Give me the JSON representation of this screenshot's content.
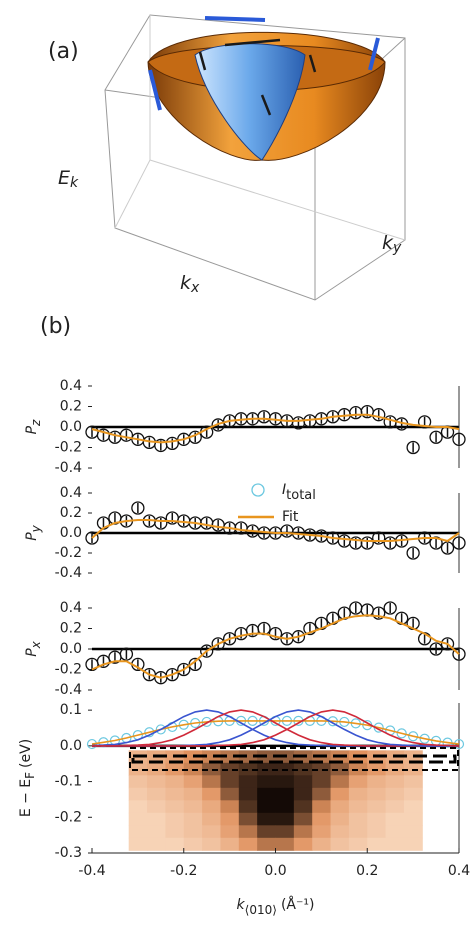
{
  "panel_a": {
    "label": "(a)",
    "zlabel": "E",
    "zlabel_sub": "k",
    "xlabel": "k",
    "xlabel_sub": "x",
    "ylabel": "k",
    "ylabel_sub": "y"
  },
  "panel_b_label": "(b)",
  "chart_data": [
    {
      "type": "scatter",
      "ylabel": "P",
      "ylabel_sub": "z",
      "x": [
        -0.4,
        -0.375,
        -0.35,
        -0.325,
        -0.3,
        -0.275,
        -0.25,
        -0.225,
        -0.2,
        -0.175,
        -0.15,
        -0.125,
        -0.1,
        -0.075,
        -0.05,
        -0.025,
        0,
        0.025,
        0.05,
        0.075,
        0.1,
        0.125,
        0.15,
        0.175,
        0.2,
        0.225,
        0.25,
        0.275,
        0.3,
        0.325,
        0.35,
        0.375,
        0.4
      ],
      "xlim": [
        -0.4,
        0.4
      ],
      "ylim": [
        -0.4,
        0.4
      ],
      "yticks": [
        0.4,
        0.2,
        {
          "value": 0,
          "label": "0.0"
        },
        -0.2,
        -0.4
      ],
      "series": [
        {
          "style": "points",
          "color": "#111111",
          "values": [
            -0.05,
            -0.08,
            -0.1,
            -0.08,
            -0.12,
            -0.15,
            -0.18,
            -0.16,
            -0.12,
            -0.1,
            -0.05,
            0.02,
            0.06,
            0.08,
            0.08,
            0.1,
            0.08,
            0.06,
            0.04,
            0.06,
            0.08,
            0.1,
            0.12,
            0.14,
            0.15,
            0.12,
            0.05,
            0.03,
            -0.2,
            0.05,
            -0.1,
            -0.05,
            -0.12
          ]
        },
        {
          "style": "line",
          "color": "#e8951e",
          "values": [
            -0.02,
            -0.05,
            -0.08,
            -0.1,
            -0.12,
            -0.14,
            -0.15,
            -0.14,
            -0.12,
            -0.08,
            -0.02,
            0.03,
            0.06,
            0.07,
            0.08,
            0.08,
            0.07,
            0.06,
            0.06,
            0.07,
            0.08,
            0.1,
            0.11,
            0.12,
            0.12,
            0.1,
            0.07,
            0.04,
            0.02,
            0.01,
            0,
            0,
            -0.02
          ]
        }
      ]
    },
    {
      "type": "scatter",
      "ylabel": "P",
      "ylabel_sub": "y",
      "x": [
        -0.4,
        -0.375,
        -0.35,
        -0.325,
        -0.3,
        -0.275,
        -0.25,
        -0.225,
        -0.2,
        -0.175,
        -0.15,
        -0.125,
        -0.1,
        -0.075,
        -0.05,
        -0.025,
        0,
        0.025,
        0.05,
        0.075,
        0.1,
        0.125,
        0.15,
        0.175,
        0.2,
        0.225,
        0.25,
        0.275,
        0.3,
        0.325,
        0.35,
        0.375,
        0.4
      ],
      "xlim": [
        -0.4,
        0.4
      ],
      "ylim": [
        -0.4,
        0.4
      ],
      "yticks": [
        0.4,
        0.2,
        {
          "value": 0,
          "label": "0.0"
        },
        -0.2,
        -0.4
      ],
      "series": [
        {
          "style": "points",
          "color": "#111111",
          "values": [
            -0.05,
            0.1,
            0.15,
            0.12,
            0.25,
            0.12,
            0.1,
            0.15,
            0.12,
            0.1,
            0.1,
            0.08,
            0.05,
            0.05,
            0.02,
            0,
            0,
            0.02,
            0,
            -0.02,
            -0.03,
            -0.05,
            -0.08,
            -0.1,
            -0.1,
            -0.05,
            -0.1,
            -0.08,
            -0.2,
            -0.05,
            -0.1,
            -0.15,
            -0.1
          ]
        },
        {
          "style": "line",
          "color": "#e8951e",
          "values": [
            -0.05,
            0.05,
            0.1,
            0.12,
            0.13,
            0.13,
            0.12,
            0.12,
            0.11,
            0.1,
            0.08,
            0.06,
            0.05,
            0.03,
            0.02,
            0.01,
            0,
            0,
            -0.01,
            -0.02,
            -0.03,
            -0.05,
            -0.06,
            -0.07,
            -0.08,
            -0.08,
            -0.08,
            -0.07,
            -0.06,
            -0.05,
            -0.05,
            -0.08,
            0
          ]
        }
      ]
    },
    {
      "type": "scatter",
      "ylabel": "P",
      "ylabel_sub": "x",
      "x": [
        -0.4,
        -0.375,
        -0.35,
        -0.325,
        -0.3,
        -0.275,
        -0.25,
        -0.225,
        -0.2,
        -0.175,
        -0.15,
        -0.125,
        -0.1,
        -0.075,
        -0.05,
        -0.025,
        0,
        0.025,
        0.05,
        0.075,
        0.1,
        0.125,
        0.15,
        0.175,
        0.2,
        0.225,
        0.25,
        0.275,
        0.3,
        0.325,
        0.35,
        0.375,
        0.4
      ],
      "xlim": [
        -0.4,
        0.4
      ],
      "ylim": [
        -0.4,
        0.4
      ],
      "yticks": [
        0.4,
        0.2,
        {
          "value": 0,
          "label": "0.0"
        },
        -0.2,
        -0.4
      ],
      "series": [
        {
          "style": "points",
          "color": "#111111",
          "values": [
            -0.15,
            -0.12,
            -0.08,
            -0.05,
            -0.15,
            -0.25,
            -0.28,
            -0.25,
            -0.2,
            -0.15,
            -0.02,
            0.05,
            0.1,
            0.15,
            0.18,
            0.2,
            0.15,
            0.1,
            0.12,
            0.2,
            0.25,
            0.3,
            0.35,
            0.4,
            0.38,
            0.35,
            0.4,
            0.3,
            0.25,
            0.1,
            0,
            0.05,
            -0.05
          ]
        },
        {
          "style": "line",
          "color": "#e8951e",
          "values": [
            -0.2,
            -0.15,
            -0.12,
            -0.12,
            -0.18,
            -0.25,
            -0.28,
            -0.25,
            -0.2,
            -0.12,
            -0.02,
            0.05,
            0.1,
            0.13,
            0.15,
            0.15,
            0.12,
            0.1,
            0.12,
            0.16,
            0.2,
            0.25,
            0.3,
            0.32,
            0.33,
            0.32,
            0.3,
            0.25,
            0.2,
            0.15,
            0.08,
            0.05,
            -0.05
          ]
        }
      ]
    },
    {
      "type": "line",
      "ylabel": "E − E",
      "ylabel_sub": "F",
      "ylabel_unit": "(eV)",
      "xlabel": "k",
      "xlabel_sub": "⟨010⟩",
      "xlabel_unit": "(Å⁻¹)",
      "x": [
        -0.4,
        -0.375,
        -0.35,
        -0.325,
        -0.3,
        -0.275,
        -0.25,
        -0.225,
        -0.2,
        -0.175,
        -0.15,
        -0.125,
        -0.1,
        -0.075,
        -0.05,
        -0.025,
        0,
        0.025,
        0.05,
        0.075,
        0.1,
        0.125,
        0.15,
        0.175,
        0.2,
        0.225,
        0.25,
        0.275,
        0.3,
        0.325,
        0.35,
        0.375,
        0.4
      ],
      "xlim": [
        -0.4,
        0.4
      ],
      "ylim": [
        -0.3,
        0.12
      ],
      "xticks": [
        -0.4,
        -0.2,
        {
          "value": 0,
          "label": "0.0"
        },
        0.2,
        0.4
      ],
      "yticks": [
        0.1,
        {
          "value": 0,
          "label": "0.0"
        },
        -0.1,
        -0.2,
        -0.3
      ],
      "series": [
        {
          "name": "I",
          "name_sub": "total",
          "style": "circles",
          "color": "#6cc8e0",
          "values": [
            0.005,
            0.01,
            0.015,
            0.022,
            0.03,
            0.038,
            0.046,
            0.053,
            0.059,
            0.064,
            0.067,
            0.069,
            0.07,
            0.07,
            0.07,
            0.07,
            0.07,
            0.07,
            0.07,
            0.07,
            0.07,
            0.069,
            0.067,
            0.063,
            0.058,
            0.051,
            0.043,
            0.035,
            0.027,
            0.02,
            0.014,
            0.009,
            0.005
          ]
        },
        {
          "name": "Fit",
          "style": "line",
          "color": "#e8951e",
          "values": [
            0.005,
            0.01,
            0.015,
            0.022,
            0.03,
            0.038,
            0.046,
            0.053,
            0.059,
            0.064,
            0.067,
            0.069,
            0.07,
            0.07,
            0.07,
            0.07,
            0.07,
            0.07,
            0.07,
            0.07,
            0.07,
            0.069,
            0.067,
            0.063,
            0.058,
            0.051,
            0.043,
            0.035,
            0.027,
            0.02,
            0.014,
            0.009,
            0.005
          ]
        },
        {
          "style": "line",
          "color": "#3a55d0",
          "values": [
            0.001,
            0.002,
            0.004,
            0.009,
            0.017,
            0.03,
            0.046,
            0.064,
            0.082,
            0.095,
            0.1,
            0.095,
            0.082,
            0.064,
            0.046,
            0.03,
            0.017,
            0.009,
            0.004,
            0.002,
            0.001,
            0,
            0,
            0,
            0,
            0,
            0,
            0,
            0,
            0,
            0,
            0,
            0
          ]
        },
        {
          "style": "line",
          "color": "#d02a3a",
          "values": [
            0,
            0,
            0,
            0.001,
            0.002,
            0.004,
            0.009,
            0.017,
            0.03,
            0.046,
            0.064,
            0.082,
            0.095,
            0.1,
            0.095,
            0.082,
            0.064,
            0.046,
            0.03,
            0.017,
            0.009,
            0.004,
            0.002,
            0.001,
            0,
            0,
            0,
            0,
            0,
            0,
            0,
            0,
            0
          ]
        },
        {
          "style": "line",
          "color": "#3a55d0",
          "values": [
            0,
            0,
            0,
            0,
            0,
            0,
            0,
            0,
            0.001,
            0.002,
            0.004,
            0.009,
            0.017,
            0.03,
            0.046,
            0.064,
            0.082,
            0.095,
            0.1,
            0.095,
            0.082,
            0.064,
            0.046,
            0.03,
            0.017,
            0.009,
            0.004,
            0.002,
            0.001,
            0,
            0,
            0,
            0
          ]
        },
        {
          "style": "line",
          "color": "#d02a3a",
          "values": [
            0,
            0,
            0,
            0,
            0,
            0,
            0,
            0,
            0,
            0,
            0,
            0.001,
            0.002,
            0.004,
            0.009,
            0.017,
            0.03,
            0.046,
            0.064,
            0.082,
            0.095,
            0.1,
            0.095,
            0.082,
            0.064,
            0.046,
            0.03,
            0.017,
            0.009,
            0.004,
            0.002,
            0.001,
            0
          ]
        }
      ],
      "heatmap": {
        "x": [
          -0.3,
          -0.26,
          -0.22,
          -0.18,
          -0.14,
          -0.1,
          -0.06,
          -0.02,
          0.02,
          0.06,
          0.1,
          0.14,
          0.18,
          0.22,
          0.26,
          0.3
        ],
        "y": [
          -0.03,
          -0.065,
          -0.1,
          -0.135,
          -0.17,
          -0.205,
          -0.24,
          -0.275
        ],
        "colormap": [
          "#fde3cc",
          "#e0915e",
          "#140a06"
        ],
        "values": [
          [
            0.3,
            0.35,
            0.4,
            0.5,
            0.55,
            0.6,
            0.65,
            0.7,
            0.7,
            0.65,
            0.6,
            0.55,
            0.5,
            0.4,
            0.35,
            0.3
          ],
          [
            0.3,
            0.35,
            0.45,
            0.55,
            0.7,
            0.8,
            0.85,
            0.9,
            0.9,
            0.85,
            0.8,
            0.7,
            0.55,
            0.45,
            0.35,
            0.3
          ],
          [
            0.2,
            0.25,
            0.3,
            0.4,
            0.6,
            0.8,
            0.9,
            0.95,
            0.95,
            0.9,
            0.8,
            0.6,
            0.4,
            0.3,
            0.25,
            0.2
          ],
          [
            0.15,
            0.2,
            0.25,
            0.3,
            0.45,
            0.7,
            0.9,
            1,
            1,
            0.9,
            0.7,
            0.45,
            0.3,
            0.25,
            0.2,
            0.15
          ],
          [
            0.1,
            0.15,
            0.2,
            0.25,
            0.35,
            0.55,
            0.85,
            1,
            1,
            0.85,
            0.55,
            0.35,
            0.25,
            0.2,
            0.15,
            0.1
          ],
          [
            0.1,
            0.1,
            0.15,
            0.2,
            0.3,
            0.45,
            0.75,
            0.95,
            0.95,
            0.75,
            0.45,
            0.3,
            0.2,
            0.15,
            0.1,
            0.1
          ],
          [
            0.1,
            0.1,
            0.15,
            0.2,
            0.25,
            0.4,
            0.6,
            0.8,
            0.8,
            0.6,
            0.4,
            0.25,
            0.2,
            0.15,
            0.1,
            0.1
          ],
          [
            0.1,
            0.1,
            0.1,
            0.15,
            0.2,
            0.3,
            0.45,
            0.6,
            0.6,
            0.45,
            0.3,
            0.2,
            0.15,
            0.1,
            0.1,
            0.1
          ]
        ]
      }
    }
  ]
}
